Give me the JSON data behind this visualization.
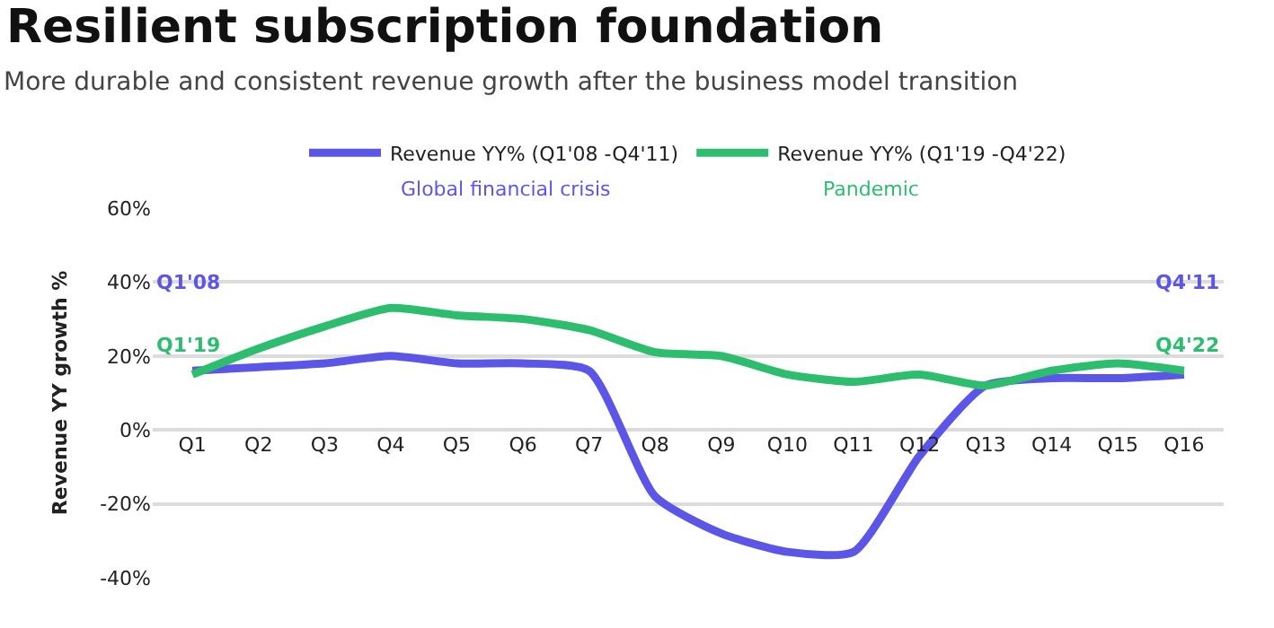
{
  "chart_data": {
    "type": "line",
    "title": "Resilient subscription foundation",
    "subtitle": "More durable and consistent revenue growth after the business model transition",
    "ylabel": "Revenue YY growth %",
    "categories": [
      "Q1",
      "Q2",
      "Q3",
      "Q4",
      "Q5",
      "Q6",
      "Q7",
      "Q8",
      "Q9",
      "Q10",
      "Q11",
      "Q12",
      "Q13",
      "Q14",
      "Q15",
      "Q16"
    ],
    "series": [
      {
        "name": "Revenue YY% (Q1'08 -Q4'11)",
        "color": "#5b56e8",
        "values": [
          16,
          17,
          18,
          20,
          18,
          18,
          16,
          -18,
          -28,
          -33,
          -33,
          -7,
          12,
          14,
          14,
          15
        ]
      },
      {
        "name": "Revenue YY% (Q1'19 -Q4'22)",
        "color": "#2dbd6e",
        "values": [
          15,
          22,
          28,
          33,
          31,
          30,
          27,
          21,
          20,
          15,
          13,
          15,
          12,
          16,
          18,
          16
        ]
      }
    ],
    "ylim": [
      -40,
      60
    ],
    "yticks": [
      {
        "value": -40,
        "label": "-40%"
      },
      {
        "value": -20,
        "label": "-20%"
      },
      {
        "value": 0,
        "label": "0%"
      },
      {
        "value": 20,
        "label": "20%"
      },
      {
        "value": 40,
        "label": "40%"
      },
      {
        "value": 60,
        "label": "60%"
      }
    ],
    "grid": "y",
    "legend": "top",
    "marker": "none",
    "line_style": "solid",
    "annotations": [
      "Global financial crisis",
      "Pandemic",
      "Q1'08",
      "Q1'19",
      "Q4'11",
      "Q4'22"
    ]
  }
}
